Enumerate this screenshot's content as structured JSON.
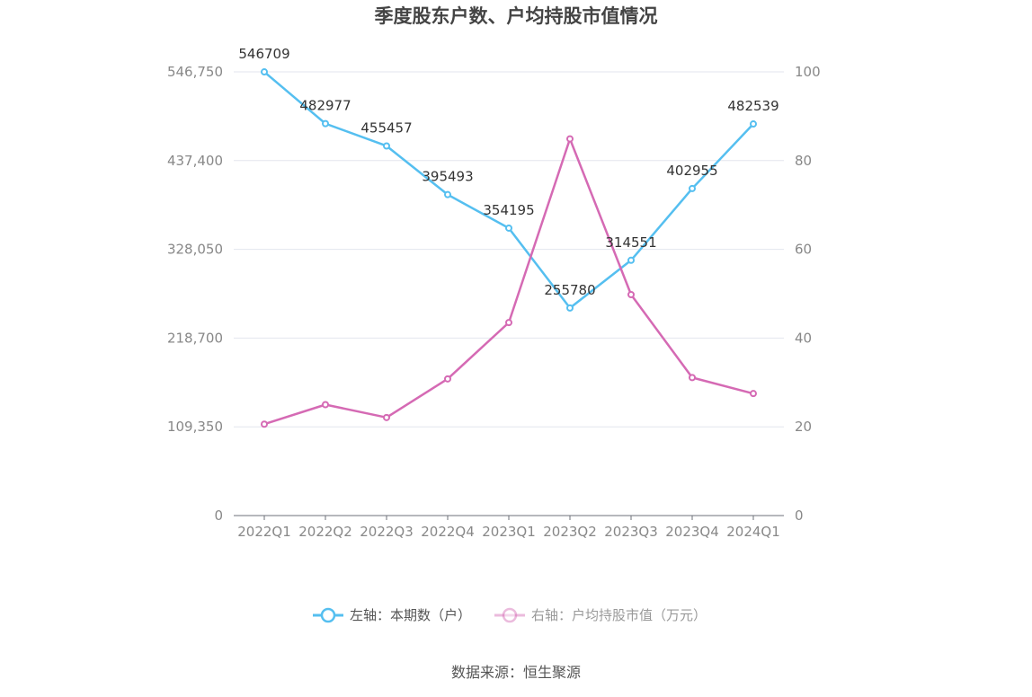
{
  "chart_data": {
    "type": "line",
    "title": "季度股东户数、户均持股市值情况",
    "categories": [
      "2022Q1",
      "2022Q2",
      "2022Q3",
      "2022Q4",
      "2023Q1",
      "2023Q2",
      "2023Q3",
      "2023Q4",
      "2024Q1"
    ],
    "series": [
      {
        "name": "左轴：本期数（户）",
        "axis": "left",
        "color": "#55bff0",
        "values": [
          546709,
          482977,
          455457,
          395493,
          354195,
          255780,
          314551,
          402955,
          482539
        ],
        "data_labels": [
          "546709",
          "482977",
          "455457",
          "395493",
          "354195",
          "255780",
          "314551",
          "402955",
          "482539"
        ]
      },
      {
        "name": "右轴：户均持股市值（万元）",
        "axis": "right",
        "color": "#d56ab4",
        "values": [
          20.6,
          25.0,
          22.1,
          30.8,
          43.5,
          84.9,
          49.8,
          31.1,
          27.5
        ]
      }
    ],
    "y_left": {
      "ylim": [
        0,
        546750
      ],
      "ticks": [
        "0",
        "109,350",
        "218,700",
        "328,050",
        "437,400",
        "546,750"
      ],
      "tick_values": [
        0,
        109350,
        218700,
        328050,
        437400,
        546750
      ]
    },
    "y_right": {
      "ylim": [
        0,
        100
      ],
      "ticks": [
        "0",
        "20",
        "40",
        "60",
        "80",
        "100"
      ],
      "tick_values": [
        0,
        20,
        40,
        60,
        80,
        100
      ]
    },
    "grid": true,
    "legend_position": "bottom-center",
    "source": "数据来源：恒生聚源"
  }
}
